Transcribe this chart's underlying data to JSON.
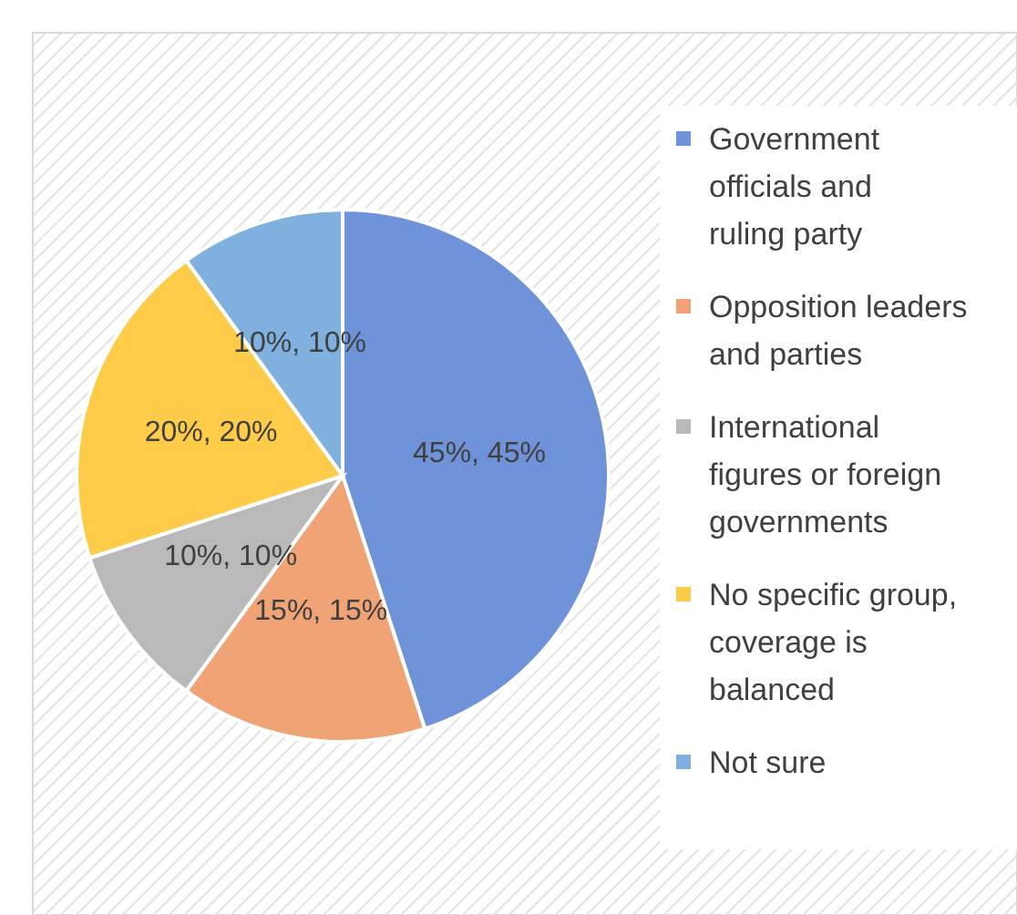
{
  "chart_data": {
    "type": "pie",
    "categories": [
      "Government officials and ruling party",
      "Opposition leaders and parties",
      "International figures or foreign governments",
      "No specific group, coverage is balanced",
      "Not sure"
    ],
    "values": [
      45,
      15,
      10,
      20,
      10
    ],
    "colors": [
      "#6f93d8",
      "#f0a476",
      "#b9b9b9",
      "#ffcc4a",
      "#7fb0de"
    ],
    "value_labels": [
      "45%, 45%",
      "15%, 15%",
      "10%, 10%",
      "20%, 20%",
      "10%, 10%"
    ],
    "legend": "right"
  }
}
